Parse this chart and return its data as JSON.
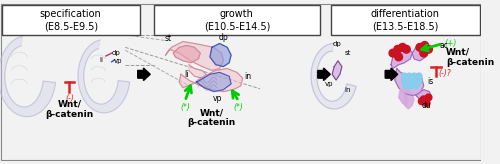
{
  "bg_color": "#f2f2f2",
  "box_bg": "#ffffff",
  "box_edge": "#444444",
  "title1": "specification\n(E8.5-E9.5)",
  "title2": "growth\n(E10.5-E14.5)",
  "title3": "differentiation\n(E13.5-E18.5)",
  "title_fontsize": 7.0,
  "label_fontsize": 5.5,
  "wnt_fontsize": 6.5,
  "fig_width": 5.0,
  "fig_height": 1.64,
  "dpi": 100,
  "embryo_color": "#d0d0e8",
  "embryo_edge": "#a0a0c0",
  "embryo_alpha": 0.4,
  "pink": "#f0c0cc",
  "pink_edge": "#cc8899",
  "blue_inner": "#8899dd",
  "blue_edge": "#4455aa",
  "lavender": "#d4aadd",
  "lav_edge": "#9966bb",
  "dark_purple": "#664488",
  "red_cell": "#cc1122",
  "blue_cell": "#88ccee",
  "green_arrow": "#00cc00",
  "red_color": "#dd2222"
}
